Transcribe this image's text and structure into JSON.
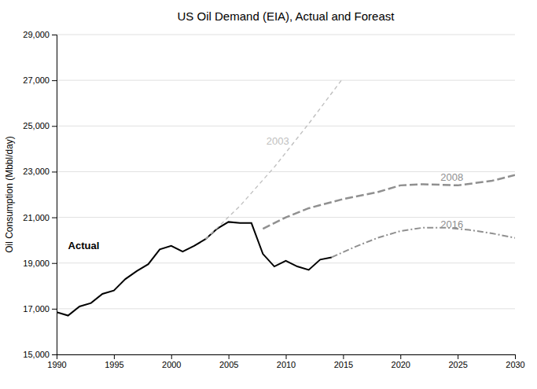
{
  "chart_data": {
    "type": "line",
    "title": "US Oil Demand (EIA), Actual and Foreast",
    "y_label": "Oil Consumption  (Mbbl/day)",
    "xlim": [
      1990,
      2030
    ],
    "ylim": [
      15000,
      29000
    ],
    "xticks": [
      1990,
      1995,
      2000,
      2005,
      2010,
      2015,
      2020,
      2025,
      2030
    ],
    "yticks": [
      {
        "value": 15000,
        "label": "15,000"
      },
      {
        "value": 17000,
        "label": "17,000"
      },
      {
        "value": 19000,
        "label": "19,000"
      },
      {
        "value": 21000,
        "label": "21,000"
      },
      {
        "value": 23000,
        "label": "23,000"
      },
      {
        "value": 25000,
        "label": "25,000"
      },
      {
        "value": 27000,
        "label": "27,000"
      },
      {
        "value": 29000,
        "label": "29,000"
      }
    ],
    "grid": true,
    "series": [
      {
        "color": "#000000",
        "line_style": "solid",
        "x": [
          1990,
          1991,
          1992,
          1993,
          1994,
          1995,
          1996,
          1997,
          1998,
          1999,
          2000,
          2001,
          2002,
          2003,
          2004,
          2005,
          2006,
          2007,
          2008,
          2009,
          2010,
          2011,
          2012,
          2013,
          2014
        ],
        "values": [
          16850,
          16700,
          17100,
          17250,
          17650,
          17800,
          18300,
          18650,
          18950,
          19600,
          19750,
          19500,
          19750,
          20050,
          20500,
          20800,
          20750,
          20750,
          19400,
          18850,
          19100,
          18850,
          18700,
          19150,
          19250
        ]
      },
      {
        "color": "#c0c0c0",
        "line_style": "dashed",
        "x": [
          2003,
          2006,
          2009,
          2012,
          2015
        ],
        "values": [
          20050,
          21500,
          23200,
          25100,
          27100
        ]
      },
      {
        "color": "#909090",
        "line_style": "longdash",
        "x": [
          2008,
          2010,
          2012,
          2015,
          2018,
          2020,
          2022,
          2025,
          2028,
          2030
        ],
        "values": [
          20500,
          21000,
          21400,
          21800,
          22100,
          22400,
          22450,
          22400,
          22600,
          22850
        ]
      },
      {
        "color": "#909090",
        "line_style": "dashdot",
        "x": [
          2014,
          2016,
          2018,
          2020,
          2022,
          2024,
          2026,
          2028,
          2030
        ],
        "values": [
          19250,
          19700,
          20100,
          20400,
          20550,
          20550,
          20450,
          20300,
          20100
        ]
      }
    ],
    "annotations": [
      {
        "text": "Actual",
        "x": 1991,
        "y": 19600
      },
      {
        "text": "2003",
        "x": 2008.3,
        "y": 24200
      },
      {
        "text": "2008",
        "x": 2023.5,
        "y": 22600
      },
      {
        "text": "2016",
        "x": 2023.5,
        "y": 20550
      }
    ]
  }
}
